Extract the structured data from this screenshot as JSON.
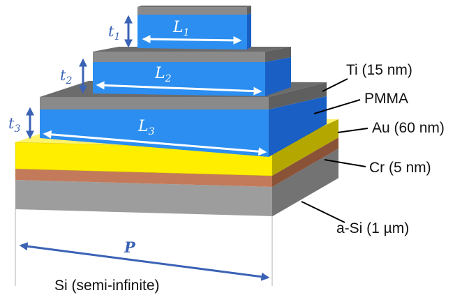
{
  "labels": {
    "ti": "Ti (15 nm)",
    "pmma": "PMMA",
    "au": "Au (60 nm)",
    "cr": "Cr (5 nm)",
    "asi": "a-Si (1 µm)",
    "si": "Si (semi-infinite)"
  },
  "dimensions": {
    "t_symbol": "t",
    "t1_sub": "1",
    "t2_sub": "2",
    "t3_sub": "3",
    "l_symbol": "L",
    "l1_sub": "1",
    "l2_sub": "2",
    "l3_sub": "3",
    "period": "P"
  },
  "colors": {
    "blue_arrow": "#3a62b5",
    "pmma_front": "#2b8ef0",
    "pmma_side": "#1a5fc4",
    "ti_front": "#8a8a8a",
    "ti_top": "#6c6c6c",
    "au_front": "#ffee00",
    "au_top": "#fff36a",
    "au_side": "#b3a700",
    "cr_front": "#c27a5a",
    "cr_side": "#8a5236",
    "asi_front": "#8c8c8c",
    "asi_side": "#5a5a5a"
  }
}
